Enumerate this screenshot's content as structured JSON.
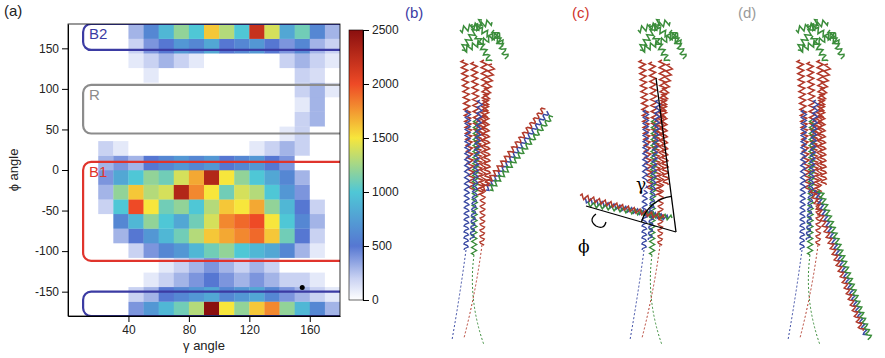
{
  "chart_data": {
    "type": "heatmap",
    "panel_labels": [
      "(a)",
      "(b)",
      "(c)",
      "(d)"
    ],
    "x_label": "γ angle",
    "y_label": "ϕ angle",
    "xlim": [
      0,
      180
    ],
    "ylim": [
      -180,
      180
    ],
    "xticks": [
      40,
      80,
      120,
      160
    ],
    "yticks": [
      -150,
      -100,
      -50,
      0,
      50,
      100,
      150
    ],
    "grid": false,
    "x_bins": [
      0,
      10,
      20,
      30,
      40,
      50,
      60,
      70,
      80,
      90,
      100,
      110,
      120,
      130,
      140,
      150,
      160,
      170,
      180
    ],
    "y_bins": [
      -180,
      -162,
      -144,
      -126,
      -108,
      -90,
      -72,
      -54,
      -36,
      -18,
      0,
      18,
      36,
      54,
      72,
      90,
      108,
      126,
      144,
      162,
      180
    ],
    "cells": [
      [
        0,
        0,
        0,
        0,
        400,
        700,
        900,
        1100,
        1300,
        2500,
        1500,
        1200,
        1600,
        1800,
        1200,
        900,
        600,
        300
      ],
      [
        0,
        0,
        0,
        0,
        200,
        300,
        500,
        600,
        700,
        800,
        600,
        700,
        800,
        600,
        400,
        300,
        200,
        100
      ],
      [
        0,
        0,
        0,
        0,
        0,
        100,
        200,
        300,
        400,
        500,
        400,
        300,
        400,
        300,
        200,
        200,
        100,
        0
      ],
      [
        0,
        0,
        0,
        0,
        0,
        0,
        100,
        200,
        300,
        400,
        300,
        200,
        300,
        200,
        0,
        0,
        0,
        0
      ],
      [
        0,
        0,
        0,
        0,
        200,
        400,
        600,
        700,
        900,
        1100,
        1200,
        1000,
        900,
        800,
        600,
        300,
        100,
        0
      ],
      [
        0,
        0,
        0,
        300,
        500,
        700,
        900,
        1100,
        1300,
        1600,
        1700,
        1800,
        1900,
        1600,
        1100,
        500,
        200,
        0
      ],
      [
        0,
        0,
        0,
        600,
        900,
        1200,
        1000,
        800,
        1100,
        1400,
        1800,
        1900,
        2000,
        1500,
        1000,
        600,
        300,
        0
      ],
      [
        0,
        0,
        200,
        1000,
        2000,
        1500,
        1100,
        1200,
        1000,
        1300,
        1600,
        1500,
        1700,
        1200,
        900,
        500,
        200,
        0
      ],
      [
        0,
        0,
        300,
        1200,
        1600,
        1300,
        1400,
        2300,
        1800,
        1500,
        1100,
        1400,
        1300,
        1000,
        700,
        400,
        0,
        0
      ],
      [
        0,
        0,
        400,
        800,
        1000,
        1200,
        1100,
        1400,
        1700,
        2300,
        1500,
        1200,
        1000,
        800,
        600,
        300,
        0,
        0
      ],
      [
        0,
        0,
        300,
        400,
        300,
        500,
        600,
        700,
        600,
        700,
        500,
        600,
        700,
        500,
        400,
        0,
        0,
        0
      ],
      [
        0,
        0,
        200,
        100,
        0,
        0,
        0,
        0,
        0,
        0,
        0,
        0,
        100,
        200,
        300,
        200,
        0,
        0
      ],
      [
        0,
        0,
        0,
        0,
        0,
        0,
        0,
        0,
        0,
        0,
        0,
        0,
        0,
        0,
        100,
        200,
        0,
        0
      ],
      [
        0,
        0,
        0,
        0,
        0,
        0,
        0,
        0,
        0,
        0,
        0,
        0,
        0,
        0,
        0,
        200,
        300,
        0
      ],
      [
        0,
        0,
        0,
        0,
        0,
        0,
        0,
        0,
        0,
        0,
        0,
        0,
        0,
        0,
        0,
        100,
        300,
        0
      ],
      [
        0,
        0,
        0,
        0,
        0,
        0,
        0,
        0,
        0,
        0,
        0,
        0,
        0,
        0,
        0,
        200,
        300,
        100
      ],
      [
        0,
        0,
        0,
        0,
        0,
        100,
        0,
        0,
        0,
        0,
        0,
        0,
        0,
        0,
        0,
        200,
        150,
        0
      ],
      [
        0,
        0,
        0,
        0,
        100,
        200,
        300,
        200,
        100,
        0,
        0,
        0,
        0,
        0,
        200,
        300,
        200,
        100
      ],
      [
        0,
        0,
        0,
        0,
        200,
        400,
        500,
        700,
        600,
        800,
        500,
        600,
        700,
        500,
        400,
        600,
        300,
        200
      ],
      [
        0,
        0,
        0,
        0,
        300,
        600,
        900,
        1200,
        1000,
        1600,
        1300,
        1000,
        2200,
        1400,
        800,
        1100,
        600,
        300
      ]
    ],
    "colorbar": {
      "range": [
        0,
        2500
      ],
      "ticks": [
        0,
        500,
        1000,
        1500,
        2000,
        2500
      ]
    },
    "regions": [
      {
        "label": "B2",
        "color": "#3b3ba3",
        "x": [
          10,
          180
        ],
        "ranges": [
          [
            148,
            180
          ],
          [
            -180,
            -150
          ]
        ]
      },
      {
        "label": "R",
        "color": "#8c8c8c",
        "x": [
          10,
          180
        ],
        "ranges": [
          [
            45,
            105
          ]
        ]
      },
      {
        "label": "B1",
        "color": "#e0342c",
        "x": [
          10,
          180
        ],
        "ranges": [
          [
            -112,
            10
          ]
        ]
      }
    ],
    "points": [
      {
        "x": 155,
        "y": -145
      }
    ],
    "annotations": [
      "γ",
      "ϕ"
    ]
  }
}
